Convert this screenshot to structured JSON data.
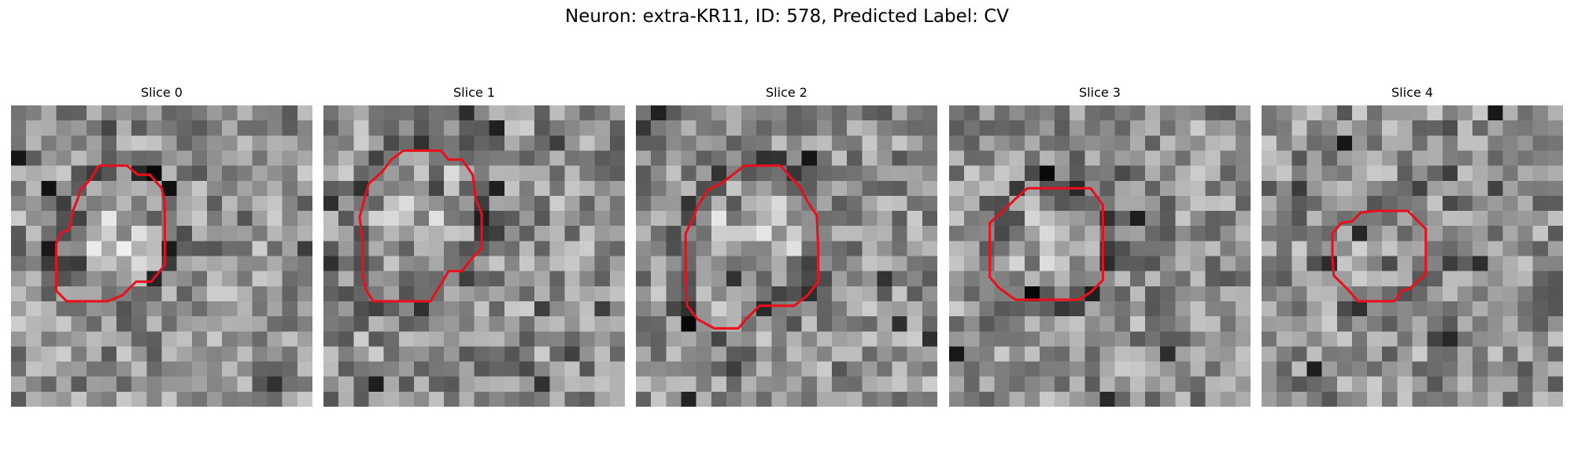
{
  "figure": {
    "title": "Neuron: extra-KR11, ID: 578, Predicted Label: CV"
  },
  "panels": [
    {
      "title": "Slice 0",
      "contour": [
        [
          5.8,
          4.0
        ],
        [
          7.7,
          4.0
        ],
        [
          8.4,
          4.6
        ],
        [
          9.2,
          4.6
        ],
        [
          10.0,
          5.5
        ],
        [
          10.2,
          6.4
        ],
        [
          10.2,
          9.3
        ],
        [
          10.2,
          10.6
        ],
        [
          9.3,
          11.7
        ],
        [
          8.3,
          11.7
        ],
        [
          7.4,
          12.6
        ],
        [
          6.4,
          13.0
        ],
        [
          5.0,
          13.0
        ],
        [
          3.7,
          13.0
        ],
        [
          3.0,
          12.3
        ],
        [
          3.0,
          9.2
        ],
        [
          3.3,
          8.5
        ],
        [
          3.9,
          8.2
        ],
        [
          4.1,
          7.0
        ],
        [
          4.4,
          6.3
        ],
        [
          4.6,
          5.6
        ],
        [
          5.3,
          4.9
        ],
        [
          5.8,
          4.0
        ]
      ]
    },
    {
      "title": "Slice 1",
      "contour": [
        [
          5.3,
          3.0
        ],
        [
          7.8,
          3.0
        ],
        [
          8.3,
          3.6
        ],
        [
          9.2,
          3.6
        ],
        [
          9.9,
          4.6
        ],
        [
          10.1,
          6.2
        ],
        [
          10.5,
          7.2
        ],
        [
          10.5,
          9.5
        ],
        [
          9.8,
          10.2
        ],
        [
          9.2,
          11.0
        ],
        [
          8.3,
          11.0
        ],
        [
          7.9,
          11.7
        ],
        [
          7.4,
          12.5
        ],
        [
          7.1,
          13.0
        ],
        [
          4.5,
          13.0
        ],
        [
          3.3,
          13.0
        ],
        [
          2.8,
          12.2
        ],
        [
          2.6,
          11.2
        ],
        [
          2.6,
          9.0
        ],
        [
          2.4,
          7.4
        ],
        [
          2.7,
          6.3
        ],
        [
          3.0,
          5.2
        ],
        [
          3.9,
          4.4
        ],
        [
          4.5,
          3.6
        ],
        [
          5.3,
          3.0
        ]
      ]
    },
    {
      "title": "Slice 2",
      "contour": [
        [
          7.2,
          4.0
        ],
        [
          9.6,
          4.0
        ],
        [
          10.3,
          4.8
        ],
        [
          10.9,
          5.4
        ],
        [
          11.4,
          6.4
        ],
        [
          12.0,
          7.3
        ],
        [
          12.1,
          9.5
        ],
        [
          12.1,
          11.7
        ],
        [
          11.4,
          12.6
        ],
        [
          10.5,
          13.3
        ],
        [
          8.2,
          13.3
        ],
        [
          7.3,
          14.2
        ],
        [
          6.8,
          14.8
        ],
        [
          5.2,
          14.8
        ],
        [
          4.1,
          14.2
        ],
        [
          3.4,
          13.3
        ],
        [
          3.3,
          11.0
        ],
        [
          3.3,
          8.5
        ],
        [
          3.8,
          7.5
        ],
        [
          4.1,
          6.7
        ],
        [
          4.8,
          5.6
        ],
        [
          5.6,
          5.2
        ],
        [
          6.3,
          4.7
        ],
        [
          7.2,
          4.0
        ]
      ]
    },
    {
      "title": "Slice 3",
      "contour": [
        [
          6.2,
          5.5
        ],
        [
          9.4,
          5.5
        ],
        [
          9.9,
          6.2
        ],
        [
          10.2,
          6.6
        ],
        [
          10.2,
          9.2
        ],
        [
          10.2,
          11.6
        ],
        [
          9.4,
          12.4
        ],
        [
          8.6,
          12.9
        ],
        [
          6.4,
          12.9
        ],
        [
          4.4,
          12.9
        ],
        [
          3.3,
          12.1
        ],
        [
          2.7,
          11.4
        ],
        [
          2.7,
          9.2
        ],
        [
          2.7,
          7.8
        ],
        [
          3.6,
          7.0
        ],
        [
          4.4,
          6.2
        ],
        [
          5.2,
          5.5
        ],
        [
          6.2,
          5.5
        ]
      ]
    },
    {
      "title": "Slice 4",
      "contour": [
        [
          7.7,
          7.0
        ],
        [
          9.7,
          7.0
        ],
        [
          10.2,
          7.5
        ],
        [
          10.9,
          8.2
        ],
        [
          10.9,
          10.3
        ],
        [
          10.9,
          11.2
        ],
        [
          10.2,
          11.8
        ],
        [
          9.8,
          12.2
        ],
        [
          9.3,
          12.3
        ],
        [
          9.0,
          12.8
        ],
        [
          8.8,
          13.0
        ],
        [
          7.5,
          13.0
        ],
        [
          6.4,
          13.0
        ],
        [
          5.8,
          12.3
        ],
        [
          5.4,
          11.9
        ],
        [
          4.8,
          11.3
        ],
        [
          4.7,
          10.2
        ],
        [
          4.7,
          8.5
        ],
        [
          5.3,
          7.8
        ],
        [
          6.0,
          7.7
        ],
        [
          6.6,
          7.1
        ],
        [
          7.7,
          7.0
        ]
      ]
    }
  ],
  "colors": {
    "contour": "#e8101d",
    "background": "#ffffff"
  }
}
